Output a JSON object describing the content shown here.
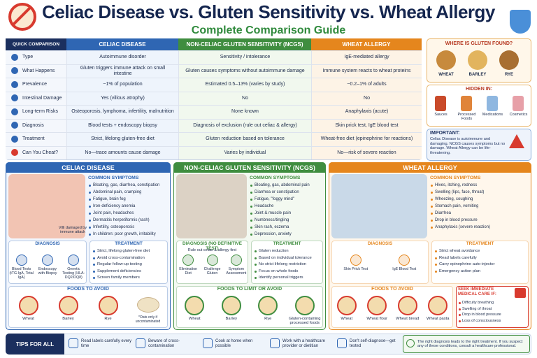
{
  "header": {
    "title": "Celiac Disease vs. Gluten Sensitivity vs. Wheat Allergy",
    "subtitle": "Complete Comparison Guide"
  },
  "table": {
    "headers": [
      "QUICK COMPARISON",
      "CELIAC DISEASE",
      "NON-CELIAC GLUTEN SENSITIVITY (NCGS)",
      "WHEAT ALLERGY"
    ],
    "rows": [
      [
        "Type",
        "Autoimmune disorder",
        "Sensitivity / intolerance",
        "IgE-mediated allergy"
      ],
      [
        "What Happens",
        "Gluten triggers immune attack on small intestine",
        "Gluten causes symptoms without autoimmune damage",
        "Immune system reacts to wheat proteins"
      ],
      [
        "Prevalence",
        "~1% of population",
        "Estimated 0.5–13% (varies by study)",
        "~0.2–1% of adults"
      ],
      [
        "Intestinal Damage",
        "Yes (villous atrophy)",
        "No",
        "No"
      ],
      [
        "Long-term Risks",
        "Osteoporosis, lymphoma, infertility, malnutrition",
        "None known",
        "Anaphylaxis (acute)"
      ],
      [
        "Diagnosis",
        "Blood tests + endoscopy biopsy",
        "Diagnosis of exclusion (rule out celiac & allergy)",
        "Skin prick test, IgE blood test"
      ],
      [
        "Treatment",
        "Strict, lifelong gluten-free diet",
        "Gluten reduction based on tolerance",
        "Wheat-free diet (epinephrine for reactions)"
      ],
      [
        "Can You Cheat?",
        "No—trace amounts cause damage",
        "Varies by individual",
        "No—risk of severe reaction"
      ]
    ]
  },
  "sidebar": {
    "gluten_title": "WHERE IS GLUTEN FOUND?",
    "grains": [
      "WHEAT",
      "BARLEY",
      "RYE"
    ],
    "hidden_title": "HIDDEN IN:",
    "hidden": [
      "Sauces",
      "Processed Foods",
      "Medications",
      "Cosmetics"
    ],
    "important_title": "IMPORTANT:",
    "important_text": "Celiac Disease is autoimmune and damaging. NCGS causes symptoms but no damage. Wheat Allergy can be life-threatening."
  },
  "panels": [
    {
      "title": "CELIAC DISEASE",
      "image_caption": "Villi damaged by immune attack",
      "symptoms_title": "COMMON SYMPTOMS",
      "symptoms": [
        "Bloating, gas, diarrhea, constipation",
        "Abdominal pain, cramping",
        "Fatigue, brain fog",
        "Iron-deficiency anemia",
        "Joint pain, headaches",
        "Dermatitis herpetiformis (rash)",
        "Infertility, osteoporosis",
        "In children: poor growth, irritability"
      ],
      "diagnosis_title": "DIAGNOSIS",
      "diagnosis": [
        "Blood Tests (tTG-IgA, Total IgA)",
        "Endoscopy with Biopsy",
        "Genetic Testing (HLA-DQ2/DQ8)"
      ],
      "treatment_title": "TREATMENT",
      "treatment": [
        "Strict, lifelong gluten-free diet",
        "Avoid cross-contamination",
        "Regular follow-up testing",
        "Supplement deficiencies",
        "Screen family members"
      ],
      "foods_title": "FOODS TO AVOID",
      "foods": [
        "Wheat",
        "Barley",
        "Rye"
      ],
      "foods_note": "*Oats only if uncontaminated"
    },
    {
      "title": "NON-CELIAC GLUTEN SENSITIVITY (NCGS)",
      "symptoms_title": "COMMON SYMPTOMS",
      "symptoms": [
        "Bloating, gas, abdominal pain",
        "Diarrhea or constipation",
        "Fatigue, \"foggy mind\"",
        "Headache",
        "Joint & muscle pain",
        "Numbness/tingling",
        "Skin rash, eczema",
        "Depression, anxiety"
      ],
      "diagnosis_title": "DIAGNOSIS (NO DEFINITIVE TEST)",
      "diagnosis_note": "Rule out celiac & allergy first",
      "diagnosis": [
        "Elimination Diet",
        "Challenge Gluten",
        "Symptom Assessment"
      ],
      "treatment_title": "TREATMENT",
      "treatment": [
        "Gluten reduction",
        "Based on individual tolerance",
        "No strict lifelong restriction",
        "Focus on whole foods",
        "Identify personal triggers"
      ],
      "foods_title": "FOODS TO LIMIT OR AVOID",
      "foods": [
        "Wheat",
        "Barley",
        "Rye",
        "Gluten-containing processed foods"
      ]
    },
    {
      "title": "WHEAT ALLERGY",
      "symptoms_title": "COMMON SYMPTOMS",
      "symptoms": [
        "Hives, itching, redness",
        "Swelling (lips, face, throat)",
        "Wheezing, coughing",
        "Stomach pain, vomiting",
        "Diarrhea",
        "Drop in blood pressure",
        "Anaphylaxis (severe reaction)"
      ],
      "diagnosis_title": "DIAGNOSIS",
      "diagnosis": [
        "Skin Prick Test",
        "IgE Blood Test"
      ],
      "treatment_title": "TREATMENT",
      "treatment": [
        "Strict wheat avoidance",
        "Read labels carefully",
        "Carry epinephrine auto-injector",
        "Emergency action plan"
      ],
      "foods_title": "FOODS TO AVOID",
      "foods": [
        "Wheat",
        "Wheat flour",
        "Wheat bread",
        "Wheat pasta"
      ],
      "urgent_title": "SEEK IMMEDIATE MEDICAL CARE IF:",
      "urgent": [
        "Difficulty breathing",
        "Swelling of throat",
        "Drop in blood pressure",
        "Loss of consciousness"
      ]
    }
  ],
  "tips": {
    "title": "TIPS FOR ALL",
    "items": [
      "Read labels carefully every time",
      "Beware of cross-contamination",
      "Cook at home when possible",
      "Work with a healthcare provider or dietitian",
      "Don't self-diagnose—get tested"
    ],
    "final": "The right diagnosis leads to the right treatment. If you suspect any of these conditions, consult a healthcare professional."
  }
}
